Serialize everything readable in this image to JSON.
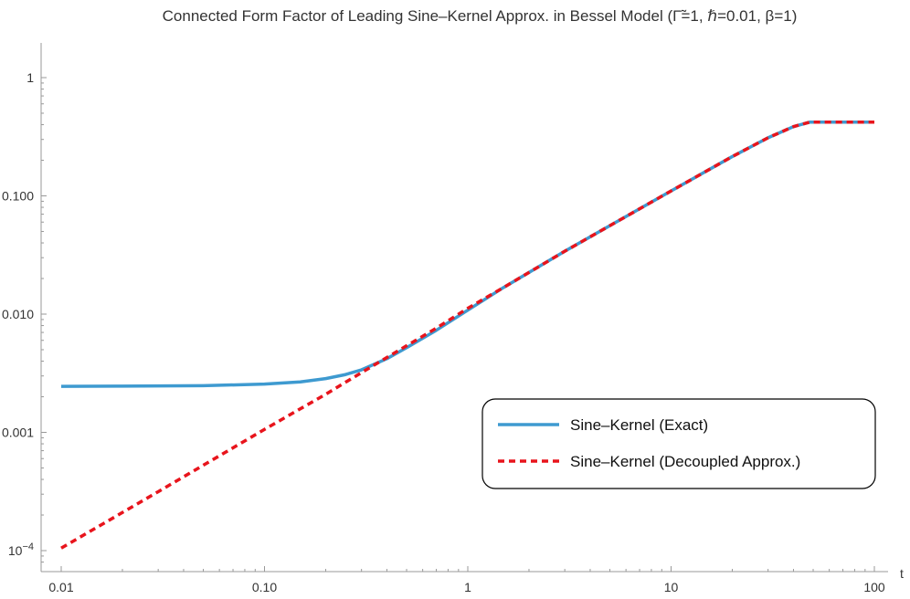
{
  "chart_data": {
    "type": "line",
    "title": "Connected Form Factor of Leading Sine–Kernel Approx. in Bessel Model (Γ̃=1, ℏ=0.01, β=1)",
    "xlabel": "t",
    "ylabel": "",
    "xscale": "log",
    "yscale": "log",
    "xlim": [
      0.01,
      100
    ],
    "ylim": [
      8e-05,
      1.6
    ],
    "grid": false,
    "legend_position": "right-middle",
    "x_ticks": [
      {
        "value": 0.01,
        "label": "0.01"
      },
      {
        "value": 0.1,
        "label": "0.10"
      },
      {
        "value": 1,
        "label": "1"
      },
      {
        "value": 10,
        "label": "10"
      },
      {
        "value": 100,
        "label": "100"
      }
    ],
    "y_ticks": [
      {
        "value": 0.0001,
        "label": "10",
        "sup": "−4"
      },
      {
        "value": 0.001,
        "label": "0.001"
      },
      {
        "value": 0.01,
        "label": "0.010"
      },
      {
        "value": 0.1,
        "label": "0.100"
      },
      {
        "value": 1,
        "label": "1"
      }
    ],
    "series": [
      {
        "name": "Sine–Kernel (Exact)",
        "color": "#3e9ad0",
        "style": "solid",
        "points": [
          [
            0.01,
            0.00245
          ],
          [
            0.02,
            0.00246
          ],
          [
            0.05,
            0.00248
          ],
          [
            0.1,
            0.00256
          ],
          [
            0.15,
            0.00267
          ],
          [
            0.2,
            0.00285
          ],
          [
            0.25,
            0.00308
          ],
          [
            0.3,
            0.00338
          ],
          [
            0.4,
            0.0042
          ],
          [
            0.5,
            0.0052
          ],
          [
            0.7,
            0.0073
          ],
          [
            1.0,
            0.0108
          ],
          [
            1.5,
            0.0168
          ],
          [
            2,
            0.0225
          ],
          [
            3,
            0.034
          ],
          [
            5,
            0.056
          ],
          [
            10,
            0.11
          ],
          [
            20,
            0.215
          ],
          [
            30,
            0.31
          ],
          [
            40,
            0.385
          ],
          [
            48,
            0.42
          ],
          [
            50,
            0.42
          ],
          [
            70,
            0.42
          ],
          [
            100,
            0.42
          ]
        ]
      },
      {
        "name": "Sine–Kernel (Decoupled Approx.)",
        "color": "#e8141c",
        "style": "dashed",
        "points": [
          [
            0.01,
            0.000105
          ],
          [
            0.03,
            0.000315
          ],
          [
            0.1,
            0.00106
          ],
          [
            0.2,
            0.0021
          ],
          [
            0.3,
            0.0032
          ],
          [
            0.5,
            0.0054
          ],
          [
            0.7,
            0.0076
          ],
          [
            1.0,
            0.0112
          ],
          [
            1.5,
            0.0168
          ],
          [
            2,
            0.0225
          ],
          [
            3,
            0.034
          ],
          [
            5,
            0.056
          ],
          [
            10,
            0.11
          ],
          [
            20,
            0.215
          ],
          [
            30,
            0.31
          ],
          [
            40,
            0.385
          ],
          [
            48,
            0.42
          ],
          [
            50,
            0.42
          ],
          [
            70,
            0.42
          ],
          [
            100,
            0.42
          ]
        ]
      }
    ]
  }
}
